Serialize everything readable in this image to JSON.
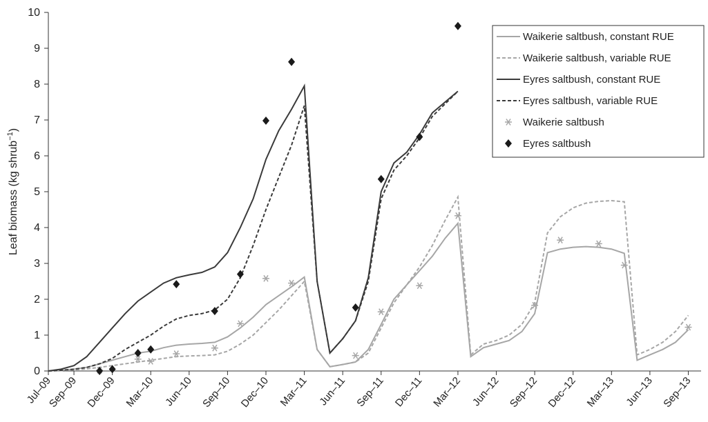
{
  "chart_data": {
    "type": "line",
    "y_label": "Leaf biomass (kg shrub",
    "y_label_sup": "−1",
    "y_label_end": ")",
    "x": [
      "2009-07",
      "2009-08",
      "2009-09",
      "2009-10",
      "2009-11",
      "2009-12",
      "2010-01",
      "2010-02",
      "2010-03",
      "2010-04",
      "2010-05",
      "2010-06",
      "2010-07",
      "2010-08",
      "2010-09",
      "2010-10",
      "2010-11",
      "2010-12",
      "2011-01",
      "2011-02",
      "2011-03",
      "2011-04",
      "2011-05",
      "2011-06",
      "2011-07",
      "2011-08",
      "2011-09",
      "2011-10",
      "2011-11",
      "2011-12",
      "2012-01",
      "2012-02",
      "2012-03",
      "2012-04",
      "2012-05",
      "2012-06",
      "2012-07",
      "2012-08",
      "2012-09",
      "2012-10",
      "2012-11",
      "2012-12",
      "2013-01",
      "2013-02",
      "2013-03",
      "2013-04",
      "2013-05",
      "2013-06",
      "2013-07",
      "2013-08",
      "2013-09"
    ],
    "xlim": [
      "2009-07",
      "2013-10"
    ],
    "xticks": [
      {
        "value": "2009-07",
        "label": "Jul–09"
      },
      {
        "value": "2009-09",
        "label": "Sep–09"
      },
      {
        "value": "2009-12",
        "label": "Dec–09"
      },
      {
        "value": "2010-03",
        "label": "Mar–10"
      },
      {
        "value": "2010-06",
        "label": "Jun–10"
      },
      {
        "value": "2010-09",
        "label": "Sep–10"
      },
      {
        "value": "2010-12",
        "label": "Dec–10"
      },
      {
        "value": "2011-03",
        "label": "Mar–11"
      },
      {
        "value": "2011-06",
        "label": "Jun–11"
      },
      {
        "value": "2011-09",
        "label": "Sep–11"
      },
      {
        "value": "2011-12",
        "label": "Dec–11"
      },
      {
        "value": "2012-03",
        "label": "Mar–12"
      },
      {
        "value": "2012-06",
        "label": "Jun–12"
      },
      {
        "value": "2012-09",
        "label": "Sep–12"
      },
      {
        "value": "2012-12",
        "label": "Dec–12"
      },
      {
        "value": "2013-03",
        "label": "Mar–13"
      },
      {
        "value": "2013-06",
        "label": "Jun–13"
      },
      {
        "value": "2013-09",
        "label": "Sep–13"
      }
    ],
    "ylim": [
      0,
      10
    ],
    "yticks": [
      0,
      1,
      2,
      3,
      4,
      5,
      6,
      7,
      8,
      9,
      10
    ],
    "legend": "upper right",
    "series": [
      {
        "name": "Waikerie saltbush, constant RUE",
        "kind": "line",
        "dashed": false,
        "color": "#a6a6a6",
        "values": [
          0,
          0.02,
          0.05,
          0.1,
          0.2,
          0.3,
          0.4,
          0.5,
          0.55,
          0.65,
          0.72,
          0.75,
          0.77,
          0.8,
          0.95,
          1.2,
          1.5,
          1.85,
          2.1,
          2.35,
          2.62,
          0.6,
          0.12,
          0.18,
          0.25,
          0.6,
          1.3,
          2.0,
          2.4,
          2.8,
          3.2,
          3.7,
          4.12,
          0.4,
          0.65,
          0.75,
          0.85,
          1.1,
          1.6,
          3.3,
          3.4,
          3.45,
          3.47,
          3.45,
          3.4,
          3.28,
          0.3,
          0.45,
          0.6,
          0.8,
          1.15
        ]
      },
      {
        "name": "Waikerie saltbush, variable RUE",
        "kind": "line",
        "dashed": true,
        "color": "#a6a6a6",
        "values": [
          0,
          0.01,
          0.03,
          0.06,
          0.1,
          0.15,
          0.2,
          0.25,
          0.3,
          0.35,
          0.4,
          0.42,
          0.43,
          0.45,
          0.55,
          0.75,
          1.0,
          1.35,
          1.7,
          2.1,
          2.5,
          0.6,
          0.12,
          0.18,
          0.25,
          0.5,
          1.2,
          1.9,
          2.4,
          2.9,
          3.5,
          4.2,
          4.85,
          0.45,
          0.75,
          0.85,
          1.0,
          1.3,
          1.9,
          3.85,
          4.3,
          4.55,
          4.68,
          4.73,
          4.75,
          4.72,
          0.45,
          0.6,
          0.8,
          1.1,
          1.55
        ]
      },
      {
        "name": "Eyres saltbush, constant RUE",
        "kind": "line",
        "dashed": false,
        "color": "#3a3a3a",
        "values": [
          0,
          0.05,
          0.15,
          0.4,
          0.8,
          1.2,
          1.6,
          1.95,
          2.2,
          2.45,
          2.6,
          2.68,
          2.75,
          2.9,
          3.3,
          4.0,
          4.8,
          5.9,
          6.7,
          7.3,
          7.95,
          2.5,
          0.5,
          0.9,
          1.4,
          2.6,
          5.0,
          5.8,
          6.1,
          6.6,
          7.2,
          7.5,
          7.8,
          null,
          null,
          null,
          null,
          null,
          null,
          null,
          null,
          null,
          null,
          null,
          null,
          null,
          null,
          null,
          null,
          null,
          null
        ]
      },
      {
        "name": "Eyres saltbush, variable RUE",
        "kind": "line",
        "dashed": true,
        "color": "#3a3a3a",
        "values": [
          0,
          0.02,
          0.05,
          0.1,
          0.2,
          0.35,
          0.6,
          0.8,
          1.0,
          1.25,
          1.45,
          1.55,
          1.6,
          1.7,
          2.0,
          2.6,
          3.5,
          4.5,
          5.4,
          6.3,
          7.4,
          2.5,
          0.5,
          0.9,
          1.4,
          2.5,
          4.8,
          5.6,
          6.0,
          6.5,
          7.1,
          7.45,
          7.8,
          null,
          null,
          null,
          null,
          null,
          null,
          null,
          null,
          null,
          null,
          null,
          null,
          null,
          null,
          null,
          null,
          null,
          null
        ]
      },
      {
        "name": "Waikerie saltbush",
        "kind": "scatter",
        "marker": "asterisk",
        "color": "#a6a6a6",
        "x": [
          "2009-11",
          "2010-02",
          "2010-03",
          "2010-05",
          "2010-08",
          "2010-10",
          "2010-12",
          "2011-02",
          "2011-07",
          "2011-09",
          "2011-12",
          "2012-03",
          "2012-09",
          "2012-11",
          "2013-02",
          "2013-04",
          "2013-09"
        ],
        "values": [
          0.02,
          0.33,
          0.27,
          0.48,
          0.64,
          1.32,
          2.58,
          2.45,
          0.43,
          1.65,
          2.38,
          4.33,
          1.83,
          3.65,
          3.55,
          2.95,
          1.22
        ]
      },
      {
        "name": "Eyres saltbush",
        "kind": "scatter",
        "marker": "diamond",
        "color": "#1a1a1a",
        "x": [
          "2009-11",
          "2009-12",
          "2010-02",
          "2010-03",
          "2010-05",
          "2010-08",
          "2010-10",
          "2010-12",
          "2011-02",
          "2011-07",
          "2011-09",
          "2011-12",
          "2012-03"
        ],
        "values": [
          0.0,
          0.05,
          0.5,
          0.6,
          2.42,
          1.67,
          2.7,
          6.98,
          8.62,
          1.77,
          5.35,
          6.53,
          9.62
        ]
      }
    ]
  }
}
